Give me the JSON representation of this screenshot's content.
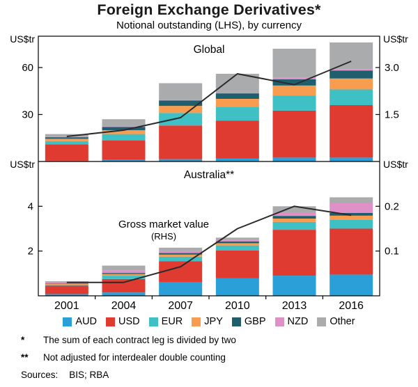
{
  "page": {
    "title": "Foreign Exchange Derivatives*",
    "subtitle": "Notional outstanding (LHS), by currency"
  },
  "legend": [
    {
      "label": "AUD",
      "color": "#2b9fd8"
    },
    {
      "label": "USD",
      "color": "#e03b30"
    },
    {
      "label": "EUR",
      "color": "#3fc0c4"
    },
    {
      "label": "JPY",
      "color": "#f89c4f"
    },
    {
      "label": "GBP",
      "color": "#1f5f6d"
    },
    {
      "label": "NZD",
      "color": "#df90c6"
    },
    {
      "label": "Other",
      "color": "#a9abad"
    }
  ],
  "line_color": "#2b2b2b",
  "frame_color": "#000000",
  "chart_data": [
    {
      "type": "bar",
      "stacked": true,
      "panel_title": "Global",
      "unit_left": "US$tr",
      "unit_right": "US$tr",
      "categories": [
        "2001",
        "2004",
        "2007",
        "2010",
        "2013",
        "2016"
      ],
      "series": [
        {
          "name": "AUD",
          "values": [
            0.5,
            1.0,
            1.5,
            2.0,
            2.5,
            2.5
          ]
        },
        {
          "name": "USD",
          "values": [
            10.5,
            12.5,
            21.5,
            24.0,
            30.0,
            33.5
          ]
        },
        {
          "name": "EUR",
          "values": [
            2.0,
            4.0,
            8.0,
            9.0,
            9.5,
            10.0
          ]
        },
        {
          "name": "JPY",
          "values": [
            1.5,
            2.5,
            4.5,
            5.0,
            6.5,
            7.0
          ]
        },
        {
          "name": "GBP",
          "values": [
            1.0,
            2.0,
            3.5,
            3.5,
            4.0,
            5.0
          ]
        },
        {
          "name": "NZD",
          "values": [
            0.2,
            0.5,
            0.5,
            0.5,
            1.0,
            1.0
          ]
        },
        {
          "name": "Other",
          "values": [
            1.8,
            4.5,
            10.5,
            12.0,
            18.5,
            17.0
          ]
        }
      ],
      "line": {
        "name": "Gross market value (RHS)",
        "axis": "right",
        "values": [
          0.8,
          1.0,
          1.4,
          2.8,
          2.45,
          3.2
        ]
      },
      "axis_left": {
        "range": [
          0,
          80
        ],
        "ticks": [
          {
            "value": 30,
            "label": "30"
          },
          {
            "value": 60,
            "label": "60"
          }
        ]
      },
      "axis_right": {
        "range": [
          0,
          4
        ],
        "ticks": [
          {
            "value": 1.5,
            "label": "1.5"
          },
          {
            "value": 3.0,
            "label": "3.0"
          }
        ]
      }
    },
    {
      "type": "bar",
      "stacked": true,
      "panel_title": "Australia**",
      "unit_left": "US$tr",
      "unit_right": "US$tr",
      "categories": [
        "2001",
        "2004",
        "2007",
        "2010",
        "2013",
        "2016"
      ],
      "series": [
        {
          "name": "AUD",
          "values": [
            0.08,
            0.15,
            0.6,
            0.78,
            0.9,
            0.95
          ]
        },
        {
          "name": "USD",
          "values": [
            0.37,
            0.6,
            0.95,
            1.25,
            2.05,
            2.05
          ]
        },
        {
          "name": "EUR",
          "values": [
            0.05,
            0.15,
            0.2,
            0.22,
            0.35,
            0.4
          ]
        },
        {
          "name": "JPY",
          "values": [
            0.03,
            0.07,
            0.09,
            0.1,
            0.15,
            0.18
          ]
        },
        {
          "name": "GBP",
          "values": [
            0.02,
            0.05,
            0.07,
            0.08,
            0.12,
            0.12
          ]
        },
        {
          "name": "NZD",
          "values": [
            0.04,
            0.12,
            0.09,
            0.07,
            0.13,
            0.45
          ]
        },
        {
          "name": "Other",
          "values": [
            0.06,
            0.21,
            0.15,
            0.1,
            0.3,
            0.25
          ]
        }
      ],
      "line": {
        "name": "Gross market value (RHS)",
        "axis": "right",
        "values": [
          0.03,
          0.03,
          0.065,
          0.15,
          0.2,
          0.18
        ]
      },
      "annotation": {
        "text": "Gross market value",
        "sub": "(RHS)"
      },
      "axis_left": {
        "range": [
          0,
          6
        ],
        "ticks": [
          {
            "value": 2,
            "label": "2"
          },
          {
            "value": 4,
            "label": "4"
          }
        ]
      },
      "axis_right": {
        "range": [
          0,
          0.3
        ],
        "ticks": [
          {
            "value": 0.1,
            "label": "0.1"
          },
          {
            "value": 0.2,
            "label": "0.2"
          }
        ]
      }
    }
  ],
  "footnotes": [
    {
      "marker": "*",
      "text": "The sum of each contract leg is divided by two"
    },
    {
      "marker": "**",
      "text": "Not adjusted for interdealer double counting"
    }
  ],
  "sources": {
    "label": "Sources:",
    "text": "BIS; RBA"
  }
}
